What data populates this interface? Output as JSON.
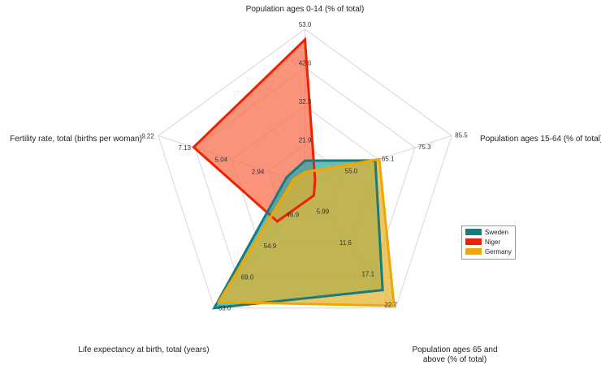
{
  "chart_data": {
    "type": "radar",
    "axes": [
      {
        "label": "Population ages 0-14 (% of total)",
        "ticks": [
          "21.9",
          "32.3",
          "42.6",
          "53.0"
        ],
        "min": 11.5,
        "max": 53.0
      },
      {
        "label": "Population ages  15-64 (% of total)",
        "ticks": [
          "55.0",
          "65.1",
          "75.3",
          "85.5"
        ],
        "min": 44.8,
        "max": 85.5
      },
      {
        "label": "Population ages  65 and above (% of total)",
        "label_lines": [
          "Population ages  65 and",
          "above (% of total)"
        ],
        "ticks": [
          "5.99",
          "11.6",
          "17.1",
          "22.7"
        ],
        "min": 0.42,
        "max": 22.7
      },
      {
        "label": "Life expectancy at birth, total (years)",
        "ticks": [
          "46.9",
          "54.9",
          "69.0",
          "83.0"
        ],
        "min": 40.8,
        "max": 83.0
      },
      {
        "label": "Fertility rate, total (births per woman)",
        "ticks": [
          "2.94",
          "5.04",
          "7.13",
          "9.22"
        ],
        "min": 0.85,
        "max": 9.22
      }
    ],
    "series": [
      {
        "name": "Sweden",
        "color": "#1a7b7b",
        "fill": "#2aa6a6",
        "values": [
          17.6,
          64.3,
          19.5,
          83.0,
          1.9
        ]
      },
      {
        "name": "Niger",
        "color": "#ee2200",
        "fill": "#f86a45",
        "values": [
          50.2,
          47.6,
          2.6,
          53.7,
          7.2
        ]
      },
      {
        "name": "Germany",
        "color": "#f0a800",
        "fill": "#e5b22a",
        "values": [
          14.5,
          65.4,
          22.3,
          81.0,
          1.5
        ]
      }
    ],
    "draw_order": [
      "Niger",
      "Sweden",
      "Germany"
    ],
    "legend": {
      "placement": "right",
      "entries": [
        "Sweden",
        "Niger",
        "Germany"
      ]
    },
    "grid": "pentagon"
  }
}
